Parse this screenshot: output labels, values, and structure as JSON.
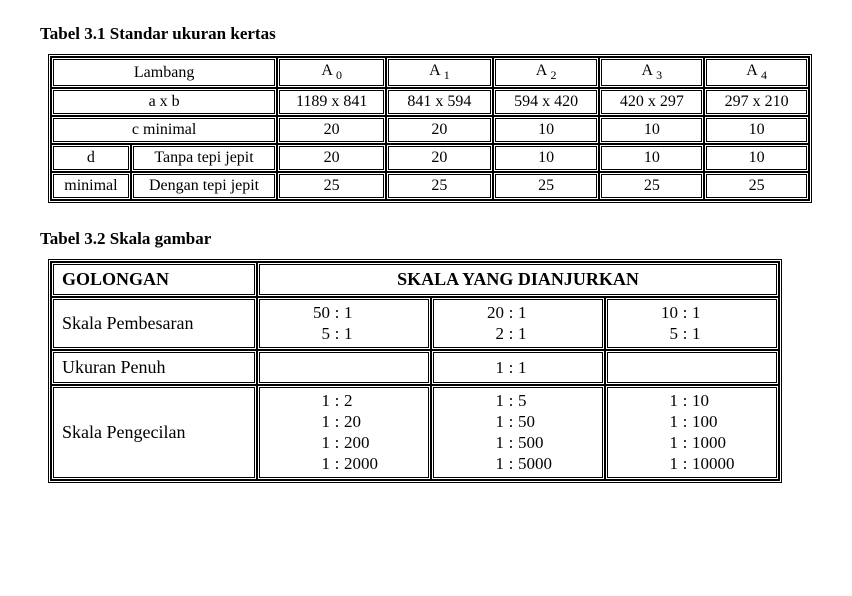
{
  "t31": {
    "caption": "Tabel 3.1 Standar ukuran kertas",
    "header_lambang": "Lambang",
    "A_letter": "A",
    "A_subs": [
      "0",
      "1",
      "2",
      "3",
      "4"
    ],
    "row_axb": "a x b",
    "sizes": [
      "1189 x 841",
      "841 x 594",
      "594 x 420",
      "420 x 297",
      "297 x 210"
    ],
    "row_cmin": "c minimal",
    "cmin": [
      "20",
      "20",
      "10",
      "10",
      "10"
    ],
    "d": "d",
    "d_min": "minimal",
    "d_tanpa": "Tanpa tepi jepit",
    "d_dengan": "Dengan tepi jepit",
    "tanpa": [
      "20",
      "20",
      "10",
      "10",
      "10"
    ],
    "dengan": [
      "25",
      "25",
      "25",
      "25",
      "25"
    ]
  },
  "t32": {
    "caption": "Tabel 3.2 Skala gambar",
    "golongan": "GOLONGAN",
    "skala_header": "SKALA YANG DIANJURKAN",
    "row_pembesaran": "Skala Pembesaran",
    "row_penuh": "Ukuran Penuh",
    "row_pengecilan": "Skala Pengecilan",
    "pembesaran": [
      [
        [
          "50",
          "1"
        ],
        [
          "5",
          "1"
        ]
      ],
      [
        [
          "20",
          "1"
        ],
        [
          "2",
          "1"
        ]
      ],
      [
        [
          "10",
          "1"
        ],
        [
          "5",
          "1"
        ]
      ]
    ],
    "penuh": [
      [],
      [
        [
          "1",
          "1"
        ]
      ],
      []
    ],
    "pengecilan": [
      [
        [
          "1",
          "2"
        ],
        [
          "1",
          "20"
        ],
        [
          "1",
          "200"
        ],
        [
          "1",
          "2000"
        ]
      ],
      [
        [
          "1",
          "5"
        ],
        [
          "1",
          "50"
        ],
        [
          "1",
          "500"
        ],
        [
          "1",
          "5000"
        ]
      ],
      [
        [
          "1",
          "10"
        ],
        [
          "1",
          "100"
        ],
        [
          "1",
          "1000"
        ],
        [
          "1",
          "10000"
        ]
      ]
    ]
  },
  "style": {
    "text_color": "#000000",
    "bg_color": "#ffffff",
    "caption_fontsize": 17,
    "body_fontsize": 16
  }
}
